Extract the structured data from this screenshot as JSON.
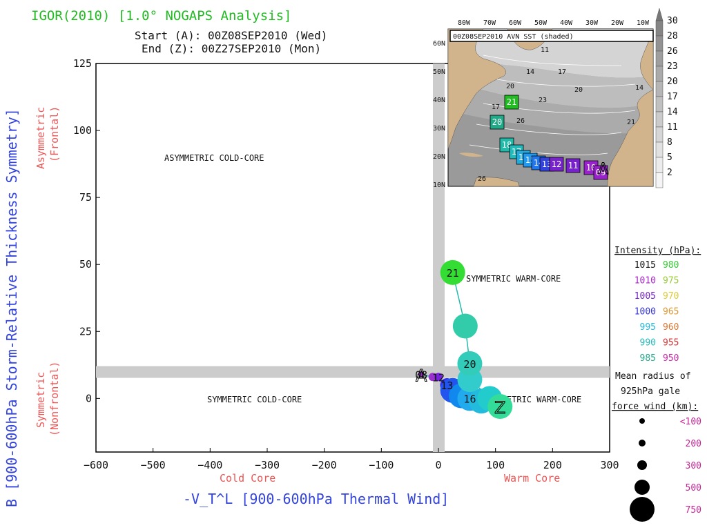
{
  "header": {
    "title": "IGOR(2010) [1.0° NOGAPS Analysis]",
    "start": "Start (A): 00Z08SEP2010 (Wed)",
    "end": "End (Z): 00Z27SEP2010 (Mon)"
  },
  "chart_data": {
    "type": "scatter",
    "title": "IGOR(2010) [1.0° NOGAPS Analysis]",
    "xlabel": "-V_T^L [900-600hPa Thermal Wind]",
    "ylabel": "B [900-600hPa Storm-Relative Thickness Symmetry]",
    "xlim": [
      -600,
      300
    ],
    "ylim": [
      -20,
      125
    ],
    "xticks": [
      -600,
      -500,
      -400,
      -300,
      -200,
      -100,
      0,
      100,
      200,
      300
    ],
    "yticks": [
      0,
      25,
      50,
      75,
      100,
      125
    ],
    "x_side_labels": {
      "cold": "Cold Core",
      "warm": "Warm Core"
    },
    "y_side_labels": {
      "upper1": "Asymmetric",
      "upper2": "(Frontal)",
      "lower1": "Symmetric",
      "lower2": "(Nonfrontal)"
    },
    "regions": {
      "asym_cold": "ASYMMETRIC COLD-CORE",
      "sym_warm_upper": "SYMMETRIC WARM-CORE",
      "sym_cold": "SYMMETRIC COLD-CORE",
      "sym_warm_lower": "SYMMETRIC WARM-CORE"
    },
    "threshold_lines": {
      "x": 0,
      "y": 10
    },
    "grid": false,
    "track": [
      {
        "x": -30,
        "y": 9,
        "label": "08",
        "marker": "A",
        "radius_km": 100,
        "color": "#9922cc"
      },
      {
        "x": -10,
        "y": 8,
        "label": "",
        "marker": "",
        "radius_km": 200,
        "color": "#9933cc"
      },
      {
        "x": 0,
        "y": 8,
        "label": "12",
        "marker": "",
        "radius_km": 200,
        "color": "#7722dd"
      },
      {
        "x": 15,
        "y": 5,
        "label": "13",
        "marker": "",
        "radius_km": 300,
        "color": "#3333ee"
      },
      {
        "x": 25,
        "y": 3,
        "label": "",
        "marker": "",
        "radius_km": 500,
        "color": "#2255ee"
      },
      {
        "x": 40,
        "y": 1,
        "label": "",
        "marker": "",
        "radius_km": 500,
        "color": "#1188ee"
      },
      {
        "x": 55,
        "y": 0,
        "label": "16",
        "marker": "",
        "radius_km": 500,
        "color": "#22aaee"
      },
      {
        "x": 75,
        "y": -1,
        "label": "",
        "marker": "",
        "radius_km": 500,
        "color": "#22bbdd"
      },
      {
        "x": 90,
        "y": 0,
        "label": "",
        "marker": "",
        "radius_km": 500,
        "color": "#22cccc"
      },
      {
        "x": 108,
        "y": -3,
        "label": "",
        "marker": "Z",
        "radius_km": 500,
        "color": "#33dd99"
      },
      {
        "x": 55,
        "y": 7,
        "label": "",
        "marker": "",
        "radius_km": 500,
        "color": "#33cccc"
      },
      {
        "x": 55,
        "y": 13,
        "label": "20",
        "marker": "",
        "radius_km": 500,
        "color": "#33ccbb"
      },
      {
        "x": 47,
        "y": 27,
        "label": "",
        "marker": "",
        "radius_km": 500,
        "color": "#33ccaa"
      },
      {
        "x": 25,
        "y": 47,
        "label": "21",
        "marker": "",
        "radius_km": 500,
        "color": "#33dd33"
      }
    ]
  },
  "intensity_legend": {
    "title": "Intensity (hPa):",
    "rows": [
      {
        "a": "1015",
        "a_color": "#111111",
        "b": "980",
        "b_color": "#33cc33"
      },
      {
        "a": "1010",
        "a_color": "#aa22cc",
        "b": "975",
        "b_color": "#99cc33"
      },
      {
        "a": "1005",
        "a_color": "#7722cc",
        "b": "970",
        "b_color": "#ddcc33"
      },
      {
        "a": "1000",
        "a_color": "#3333dd",
        "b": "965",
        "b_color": "#dd9933"
      },
      {
        "a": "995",
        "a_color": "#22bbdd",
        "b": "960",
        "b_color": "#dd7733"
      },
      {
        "a": "990",
        "a_color": "#22bbbb",
        "b": "955",
        "b_color": "#dd3333"
      },
      {
        "a": "985",
        "a_color": "#22aa88",
        "b": "950",
        "b_color": "#cc22aa"
      }
    ]
  },
  "radius_legend": {
    "title1": "Mean radius of",
    "title2": "925hPa gale",
    "title3": "force wind (km):",
    "items": [
      "<100",
      "200",
      "300",
      "500",
      "750"
    ],
    "color": "#cc2299"
  },
  "inset_map": {
    "caption": "00Z08SEP2010 AVN SST (shaded)",
    "lon_labels": [
      "80W",
      "70W",
      "60W",
      "50W",
      "40W",
      "30W",
      "20W",
      "10W"
    ],
    "lat_labels": [
      "60N",
      "50N",
      "40N",
      "30N",
      "20N",
      "10N"
    ],
    "colorbar": [
      "30",
      "28",
      "26",
      "23",
      "20",
      "17",
      "14",
      "11",
      "8",
      "5",
      "2"
    ],
    "contour_labels": [
      "11",
      "14",
      "17",
      "20",
      "23",
      "26",
      "20",
      "17",
      "14",
      "21",
      "26"
    ],
    "track_boxes": [
      {
        "label": "21",
        "color": "#22bb22"
      },
      {
        "label": "20",
        "color": "#22aa88"
      },
      {
        "label": "18",
        "color": "#22bbaa"
      },
      {
        "label": "17",
        "color": "#22bbbb"
      },
      {
        "label": "16",
        "color": "#22aadd"
      },
      {
        "label": "15",
        "color": "#2299ee"
      },
      {
        "label": "14",
        "color": "#2277ee"
      },
      {
        "label": "13",
        "color": "#3344dd"
      },
      {
        "label": "12",
        "color": "#7722cc"
      },
      {
        "label": "11",
        "color": "#7722cc"
      },
      {
        "label": "10",
        "color": "#9922cc"
      },
      {
        "label": "09",
        "color": "#9922cc"
      }
    ],
    "start_marker": "A"
  }
}
